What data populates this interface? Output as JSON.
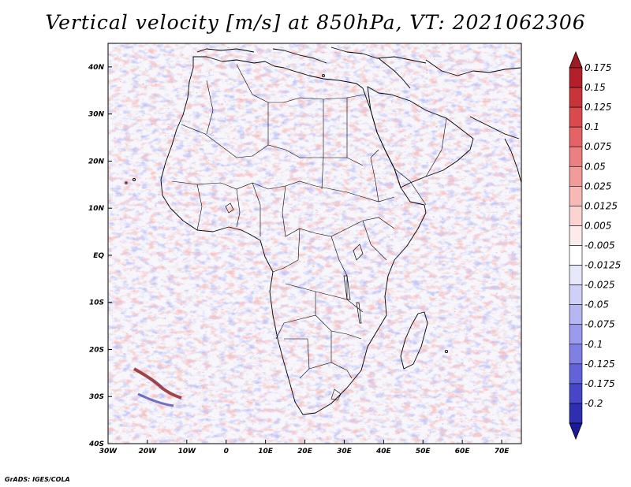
{
  "title": "Vertical velocity [m/s] at 850hPa, VT: 2021062306",
  "map": {
    "lon_range": [
      -30,
      75
    ],
    "lat_range": [
      -40,
      45
    ],
    "x_ticks": [
      {
        "lon": -30,
        "label": "30W"
      },
      {
        "lon": -20,
        "label": "20W"
      },
      {
        "lon": -10,
        "label": "10W"
      },
      {
        "lon": 0,
        "label": "0"
      },
      {
        "lon": 10,
        "label": "10E"
      },
      {
        "lon": 20,
        "label": "20E"
      },
      {
        "lon": 30,
        "label": "30E"
      },
      {
        "lon": 40,
        "label": "40E"
      },
      {
        "lon": 50,
        "label": "50E"
      },
      {
        "lon": 60,
        "label": "60E"
      },
      {
        "lon": 70,
        "label": "70E"
      }
    ],
    "y_ticks": [
      {
        "lat": 40,
        "label": "40N"
      },
      {
        "lat": 30,
        "label": "30N"
      },
      {
        "lat": 20,
        "label": "20N"
      },
      {
        "lat": 10,
        "label": "10N"
      },
      {
        "lat": 0,
        "label": "EQ"
      },
      {
        "lat": -10,
        "label": "10S"
      },
      {
        "lat": -20,
        "label": "20S"
      },
      {
        "lat": -30,
        "label": "30S"
      },
      {
        "lat": -40,
        "label": "40S"
      }
    ]
  },
  "colorbar": {
    "levels": [
      {
        "label": "0.175",
        "color": "#b4202a"
      },
      {
        "label": "0.15",
        "color": "#c8343a"
      },
      {
        "label": "0.125",
        "color": "#d84a4e"
      },
      {
        "label": "0.1",
        "color": "#e46466"
      },
      {
        "label": "0.075",
        "color": "#ec8080"
      },
      {
        "label": "0.05",
        "color": "#f29c9a"
      },
      {
        "label": "0.025",
        "color": "#f7b9b6"
      },
      {
        "label": "0.0125",
        "color": "#fbd4d2"
      },
      {
        "label": "0.005",
        "color": "#fdeaea"
      },
      {
        "label": "-0.005",
        "color": "#ffffff"
      },
      {
        "label": "-0.0125",
        "color": "#e8e8fb"
      },
      {
        "label": "-0.025",
        "color": "#cfd0f7"
      },
      {
        "label": "-0.05",
        "color": "#b5b6f2"
      },
      {
        "label": "-0.075",
        "color": "#9a9bec"
      },
      {
        "label": "-0.1",
        "color": "#7f80e4"
      },
      {
        "label": "-0.125",
        "color": "#6263d8"
      },
      {
        "label": "-0.175",
        "color": "#4646c8"
      },
      {
        "label": "-0.2",
        "color": "#2e2eb0"
      }
    ],
    "top_color": "#a01a24",
    "bottom_color": "#1a1a9a"
  },
  "credit": "GrADS: IGES/COLA"
}
